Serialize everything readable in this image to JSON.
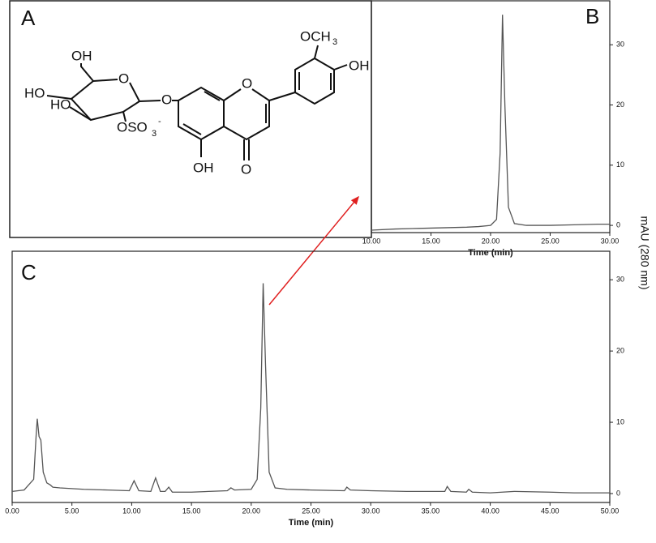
{
  "panels": [
    "A",
    "B",
    "C"
  ],
  "structure": {
    "labels": [
      "OH",
      "HO",
      "HO",
      "OSO",
      "3",
      "-",
      "O",
      "O",
      "O",
      "OH",
      "O",
      "OCH",
      "3",
      "OH"
    ]
  },
  "chart_data": [
    {
      "type": "line",
      "ylabel": "mAU (280 nm)",
      "xlabel": "Time (min)",
      "color": "#555555",
      "x": [
        10,
        12,
        14,
        16,
        18,
        19,
        20,
        20.5,
        20.8,
        21.0,
        21.2,
        21.5,
        22,
        23,
        25,
        27,
        29,
        30
      ],
      "values": [
        -0.8,
        -0.6,
        -0.5,
        -0.4,
        -0.3,
        -0.2,
        0,
        1,
        12,
        35,
        20,
        3,
        0.3,
        0,
        0,
        0.1,
        0.2,
        0.2
      ],
      "xlim": [
        10,
        30
      ],
      "ylim": [
        -1.2,
        37.3
      ],
      "xticks": [
        {
          "value": 10,
          "label": "10.00"
        },
        {
          "value": 15,
          "label": "15.00"
        },
        {
          "value": 20,
          "label": "20.00"
        },
        {
          "value": 25,
          "label": "25.00"
        },
        {
          "value": 30,
          "label": "30.00"
        }
      ],
      "yticks": [
        0,
        10,
        20,
        30
      ]
    },
    {
      "type": "line",
      "xlabel": "Time (min)",
      "color": "#555555",
      "x": [
        0,
        1,
        1.8,
        2.0,
        2.1,
        2.25,
        2.4,
        2.6,
        2.9,
        3.2,
        3.4,
        4,
        6,
        8,
        9.8,
        10.2,
        10.6,
        11.6,
        12.0,
        12.4,
        12.8,
        13.1,
        13.4,
        15,
        18,
        18.3,
        18.6,
        20,
        20.5,
        20.8,
        21.0,
        21.2,
        21.5,
        22,
        23,
        25,
        27.8,
        28,
        28.3,
        30,
        33,
        36.2,
        36.4,
        36.7,
        38,
        38.2,
        38.5,
        40,
        42,
        45,
        47,
        50
      ],
      "values": [
        0.3,
        0.5,
        2,
        8,
        10.5,
        8,
        7.5,
        3,
        1.5,
        1.2,
        0.9,
        0.8,
        0.6,
        0.5,
        0.4,
        1.8,
        0.4,
        0.3,
        2.2,
        0.3,
        0.3,
        0.9,
        0.2,
        0.2,
        0.4,
        0.8,
        0.5,
        0.6,
        2,
        12,
        29.5,
        18,
        3,
        0.8,
        0.6,
        0.5,
        0.4,
        0.9,
        0.5,
        0.4,
        0.3,
        0.3,
        1.0,
        0.3,
        0.2,
        0.6,
        0.2,
        0.1,
        0.3,
        0.2,
        0.1,
        0.1
      ],
      "xlim": [
        0,
        50
      ],
      "ylim": [
        -1.25,
        34
      ],
      "xticks": [
        {
          "value": 0,
          "label": "0.00"
        },
        {
          "value": 5,
          "label": "5.00"
        },
        {
          "value": 10,
          "label": "10.00"
        },
        {
          "value": 15,
          "label": "15.00"
        },
        {
          "value": 20,
          "label": "20.00"
        },
        {
          "value": 25,
          "label": "25.00"
        },
        {
          "value": 30,
          "label": "30.00"
        },
        {
          "value": 35,
          "label": "35.00"
        },
        {
          "value": 40,
          "label": "40.00"
        },
        {
          "value": 45,
          "label": "45.00"
        },
        {
          "value": 50,
          "label": "50.00"
        }
      ],
      "yticks": [
        0,
        10,
        20,
        30
      ]
    }
  ]
}
